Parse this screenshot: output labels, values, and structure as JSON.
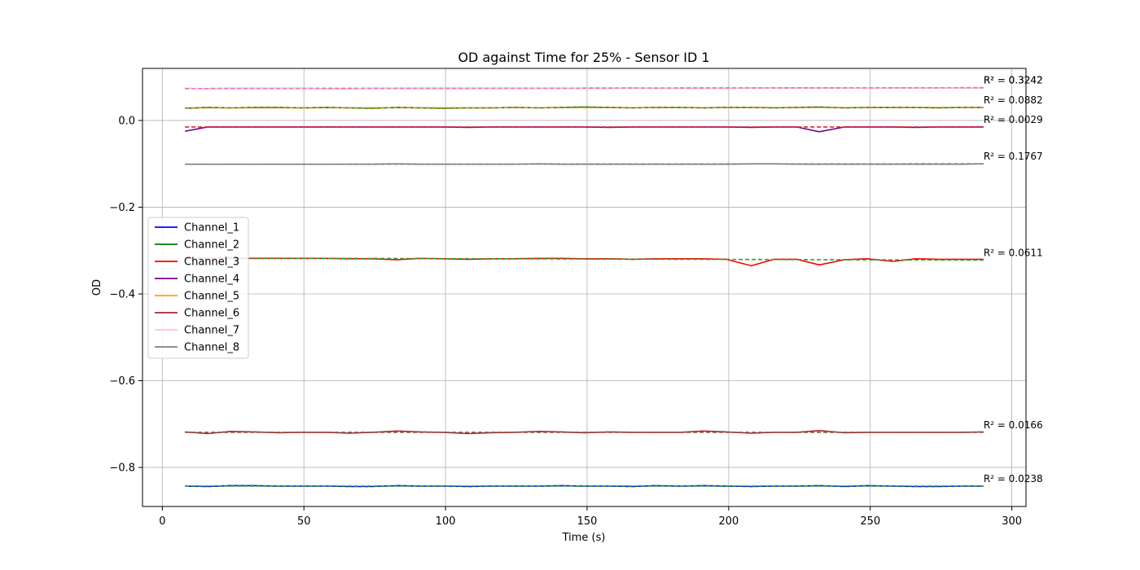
{
  "chart_data": {
    "type": "line",
    "title": "OD against Time for 25% - Sensor ID 1",
    "xlabel": "Time (s)",
    "ylabel": "OD",
    "xlim": [
      -7,
      305
    ],
    "ylim": [
      -0.89,
      0.12
    ],
    "xticks": [
      0,
      50,
      100,
      150,
      200,
      250,
      300
    ],
    "yticks": [
      -0.8,
      -0.6,
      -0.4,
      -0.2,
      0.0
    ],
    "ytick_labels": [
      "−0.8",
      "−0.6",
      "−0.4",
      "−0.2",
      "0.0"
    ],
    "grid": true,
    "legend_position": "center-left",
    "x": [
      8,
      16,
      24,
      33,
      41,
      49,
      58,
      66,
      74,
      83,
      91,
      99,
      108,
      116,
      124,
      133,
      141,
      149,
      158,
      166,
      174,
      183,
      191,
      199,
      208,
      216,
      224,
      232,
      241,
      249,
      258,
      266,
      274,
      282,
      290
    ],
    "series": [
      {
        "name": "Channel_1",
        "color": "#0000ff",
        "fit_color": "#2ca02c",
        "values": [
          -0.843,
          -0.844,
          -0.842,
          -0.842,
          -0.843,
          -0.843,
          -0.843,
          -0.844,
          -0.844,
          -0.842,
          -0.843,
          -0.843,
          -0.844,
          -0.843,
          -0.843,
          -0.843,
          -0.842,
          -0.843,
          -0.843,
          -0.844,
          -0.842,
          -0.843,
          -0.842,
          -0.843,
          -0.844,
          -0.843,
          -0.843,
          -0.842,
          -0.844,
          -0.842,
          -0.843,
          -0.844,
          -0.844,
          -0.843,
          -0.843
        ],
        "fit": [
          -0.843,
          -0.843
        ],
        "r2": "R² = 0.0238"
      },
      {
        "name": "Channel_2",
        "color": "#008000",
        "fit_color": "#ff7f0e",
        "values": [
          0.028,
          0.03,
          0.029,
          0.03,
          0.03,
          0.029,
          0.03,
          0.029,
          0.028,
          0.03,
          0.029,
          0.028,
          0.029,
          0.029,
          0.03,
          0.029,
          0.03,
          0.031,
          0.03,
          0.029,
          0.03,
          0.03,
          0.029,
          0.03,
          0.03,
          0.029,
          0.03,
          0.031,
          0.029,
          0.03,
          0.03,
          0.03,
          0.029,
          0.03,
          0.03
        ],
        "fit": [
          0.029,
          0.03
        ],
        "r2": "R² = 0.0882"
      },
      {
        "name": "Channel_3",
        "color": "#ff0000",
        "fit_color": "#2ca02c",
        "values": [
          -0.318,
          -0.318,
          -0.318,
          -0.318,
          -0.318,
          -0.318,
          -0.318,
          -0.319,
          -0.319,
          -0.321,
          -0.318,
          -0.319,
          -0.32,
          -0.319,
          -0.319,
          -0.318,
          -0.318,
          -0.319,
          -0.319,
          -0.32,
          -0.319,
          -0.319,
          -0.319,
          -0.32,
          -0.335,
          -0.32,
          -0.32,
          -0.333,
          -0.321,
          -0.319,
          -0.325,
          -0.319,
          -0.32,
          -0.32,
          -0.32
        ],
        "fit": [
          -0.317,
          -0.322
        ],
        "r2": "R² = 0.0611"
      },
      {
        "name": "Channel_4",
        "color": "#800080",
        "fit_color": "#d62728",
        "values": [
          -0.025,
          -0.015,
          -0.015,
          -0.015,
          -0.015,
          -0.015,
          -0.015,
          -0.015,
          -0.015,
          -0.015,
          -0.015,
          -0.015,
          -0.016,
          -0.015,
          -0.015,
          -0.015,
          -0.015,
          -0.015,
          -0.016,
          -0.015,
          -0.015,
          -0.015,
          -0.015,
          -0.015,
          -0.016,
          -0.015,
          -0.015,
          -0.026,
          -0.015,
          -0.015,
          -0.015,
          -0.016,
          -0.015,
          -0.015,
          -0.015
        ],
        "fit": [
          -0.015,
          -0.015
        ],
        "r2": "R² = 0.0029"
      },
      {
        "name": "Channel_5",
        "color": "#ffa500",
        "fit_color": "#9467bd",
        "values": [
          0.074,
          0.073,
          0.074,
          0.074,
          0.074,
          0.074,
          0.073,
          0.073,
          0.074,
          0.074,
          0.074,
          0.074,
          0.074,
          0.074,
          0.074,
          0.074,
          0.074,
          0.074,
          0.074,
          0.075,
          0.074,
          0.074,
          0.074,
          0.074,
          0.075,
          0.075,
          0.075,
          0.075,
          0.075,
          0.074,
          0.075,
          0.075,
          0.075,
          0.075,
          0.075
        ],
        "fit": [
          0.0735,
          0.0755
        ],
        "r2": "R² = 0.3242"
      },
      {
        "name": "Channel_6",
        "color": "#a52a2a",
        "fit_color": "#8c564b",
        "values": [
          -0.718,
          -0.722,
          -0.717,
          -0.718,
          -0.72,
          -0.719,
          -0.719,
          -0.721,
          -0.719,
          -0.716,
          -0.718,
          -0.719,
          -0.722,
          -0.72,
          -0.719,
          -0.717,
          -0.718,
          -0.72,
          -0.718,
          -0.719,
          -0.719,
          -0.719,
          -0.716,
          -0.718,
          -0.721,
          -0.719,
          -0.719,
          -0.715,
          -0.72,
          -0.719,
          -0.719,
          -0.719,
          -0.719,
          -0.719,
          -0.718
        ],
        "fit": [
          -0.719,
          -0.719
        ],
        "r2": "R² = 0.0166"
      },
      {
        "name": "Channel_7",
        "color": "#ffc0cb",
        "fit_color": "#e377c2",
        "values": [
          0.074,
          0.073,
          0.074,
          0.074,
          0.074,
          0.074,
          0.073,
          0.073,
          0.074,
          0.074,
          0.074,
          0.074,
          0.074,
          0.074,
          0.074,
          0.074,
          0.074,
          0.074,
          0.074,
          0.075,
          0.074,
          0.074,
          0.074,
          0.074,
          0.075,
          0.075,
          0.075,
          0.075,
          0.075,
          0.074,
          0.075,
          0.075,
          0.075,
          0.075,
          0.075
        ],
        "fit": [
          0.0735,
          0.0755
        ],
        "r2": "R² = 0.3242"
      },
      {
        "name": "Channel_8",
        "color": "#808080",
        "fit_color": "#7f7f7f",
        "values": [
          -0.101,
          -0.101,
          -0.101,
          -0.101,
          -0.101,
          -0.101,
          -0.101,
          -0.101,
          -0.101,
          -0.1,
          -0.101,
          -0.101,
          -0.101,
          -0.101,
          -0.101,
          -0.1,
          -0.101,
          -0.101,
          -0.101,
          -0.101,
          -0.101,
          -0.101,
          -0.101,
          -0.101,
          -0.1,
          -0.1,
          -0.101,
          -0.101,
          -0.101,
          -0.101,
          -0.101,
          -0.101,
          -0.101,
          -0.101,
          -0.1
        ],
        "fit": [
          -0.101,
          -0.1
        ],
        "r2": "R² = 0.1767"
      }
    ]
  }
}
